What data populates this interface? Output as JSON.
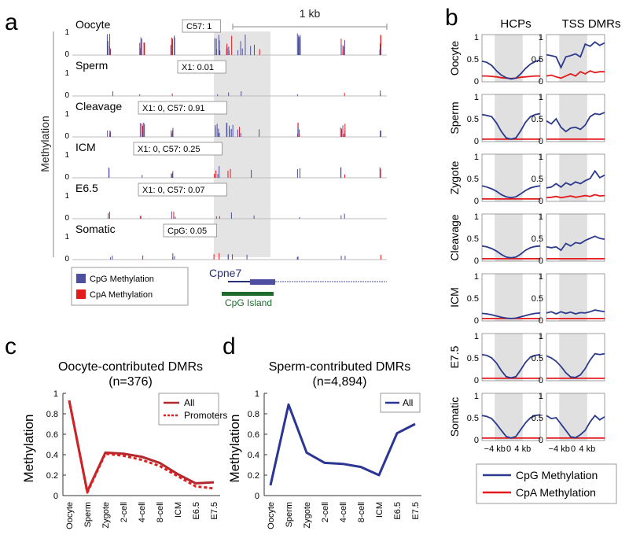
{
  "panels": {
    "a": "a",
    "b": "b",
    "c": "c",
    "d": "d"
  },
  "colors": {
    "cpg": "#2b3a8c",
    "cpa": "#e41a1c",
    "oocyte": "#b3282d",
    "sperm": "#2b3593",
    "island": "#1f6b2e",
    "shade": "#e0e0e0"
  },
  "chart_data": [
    {
      "type": "genome-track",
      "panel": "a",
      "ylabel": "Methylation",
      "scale_bar": "1 kb",
      "tracks": [
        {
          "name": "Oocyte",
          "box": "C57: 1"
        },
        {
          "name": "Sperm",
          "box": "X1: 0.01"
        },
        {
          "name": "Cleavage",
          "box": "X1: 0, C57: 0.91"
        },
        {
          "name": "ICM",
          "box": "X1: 0, C57: 0.25"
        },
        {
          "name": "E6.5",
          "box": "X1: 0, C57: 0.07"
        },
        {
          "name": "Somatic",
          "box": "CpG: 0.05"
        }
      ],
      "y_ticks": [
        "1",
        "0"
      ],
      "gene": "Cpne7",
      "cpg_island_label": "CpG Island",
      "legend": [
        "CpG Methylation",
        "CpA Methylation"
      ]
    },
    {
      "type": "line",
      "panel": "b",
      "columns": [
        "HCPs",
        "TSS DMRs"
      ],
      "rows": [
        "Oocyte",
        "Sperm",
        "Zygote",
        "Cleavage",
        "ICM",
        "E7.5",
        "Somatic"
      ],
      "x_ticks": [
        "−4 kb",
        "0",
        "4 kb"
      ],
      "y_ticks": [
        "1",
        "0.5",
        "0"
      ],
      "ylim": [
        0,
        1
      ],
      "legend": [
        "CpG Methylation",
        "CpA Methylation"
      ],
      "hcp_cpg": [
        [
          0.45,
          0.42,
          0.35,
          0.22,
          0.12,
          0.06,
          0.03,
          0.05,
          0.15,
          0.28,
          0.38,
          0.44,
          0.48
        ],
        [
          0.6,
          0.58,
          0.55,
          0.4,
          0.2,
          0.05,
          0.02,
          0.05,
          0.22,
          0.42,
          0.55,
          0.6,
          0.62
        ],
        [
          0.33,
          0.3,
          0.26,
          0.2,
          0.12,
          0.07,
          0.05,
          0.07,
          0.14,
          0.22,
          0.28,
          0.31,
          0.33
        ],
        [
          0.32,
          0.3,
          0.26,
          0.2,
          0.12,
          0.06,
          0.04,
          0.06,
          0.13,
          0.22,
          0.28,
          0.31,
          0.32
        ],
        [
          0.14,
          0.13,
          0.11,
          0.08,
          0.05,
          0.03,
          0.02,
          0.03,
          0.06,
          0.09,
          0.12,
          0.14,
          0.15
        ],
        [
          0.58,
          0.56,
          0.5,
          0.38,
          0.2,
          0.06,
          0.03,
          0.06,
          0.22,
          0.4,
          0.52,
          0.56,
          0.58
        ],
        [
          0.55,
          0.53,
          0.48,
          0.35,
          0.2,
          0.06,
          0.02,
          0.06,
          0.22,
          0.38,
          0.5,
          0.55,
          0.57
        ]
      ],
      "hcp_cpa": [
        [
          0.1,
          0.1,
          0.09,
          0.08,
          0.06,
          0.05,
          0.04,
          0.05,
          0.07,
          0.08,
          0.09,
          0.1,
          0.1
        ],
        [
          0.02,
          0.02,
          0.02,
          0.02,
          0.02,
          0.02,
          0.02,
          0.02,
          0.02,
          0.02,
          0.02,
          0.02,
          0.02
        ],
        [
          0.02,
          0.02,
          0.02,
          0.02,
          0.02,
          0.02,
          0.02,
          0.02,
          0.02,
          0.02,
          0.02,
          0.02,
          0.02
        ],
        [
          0.02,
          0.02,
          0.02,
          0.02,
          0.02,
          0.02,
          0.02,
          0.02,
          0.02,
          0.02,
          0.02,
          0.02,
          0.02
        ],
        [
          0.02,
          0.02,
          0.02,
          0.02,
          0.02,
          0.02,
          0.02,
          0.02,
          0.02,
          0.02,
          0.02,
          0.02,
          0.02
        ],
        [
          0.02,
          0.02,
          0.02,
          0.02,
          0.02,
          0.02,
          0.02,
          0.02,
          0.02,
          0.02,
          0.02,
          0.02,
          0.02
        ],
        [
          0.02,
          0.02,
          0.02,
          0.02,
          0.02,
          0.02,
          0.02,
          0.02,
          0.02,
          0.02,
          0.02,
          0.02,
          0.02
        ]
      ],
      "tss_cpg": [
        [
          0.6,
          0.58,
          0.55,
          0.3,
          0.55,
          0.58,
          0.62,
          0.55,
          0.85,
          0.8,
          0.9,
          0.82,
          0.88
        ],
        [
          0.45,
          0.38,
          0.5,
          0.3,
          0.2,
          0.28,
          0.3,
          0.25,
          0.35,
          0.55,
          0.62,
          0.6,
          0.65
        ],
        [
          0.28,
          0.3,
          0.38,
          0.3,
          0.4,
          0.35,
          0.42,
          0.38,
          0.45,
          0.5,
          0.68,
          0.52,
          0.58
        ],
        [
          0.3,
          0.28,
          0.3,
          0.22,
          0.38,
          0.32,
          0.4,
          0.38,
          0.45,
          0.5,
          0.55,
          0.5,
          0.48
        ],
        [
          0.15,
          0.18,
          0.13,
          0.18,
          0.14,
          0.17,
          0.13,
          0.16,
          0.15,
          0.18,
          0.22,
          0.2,
          0.18
        ],
        [
          0.55,
          0.5,
          0.42,
          0.3,
          0.15,
          0.05,
          0.04,
          0.1,
          0.25,
          0.45,
          0.6,
          0.58,
          0.6
        ],
        [
          0.55,
          0.48,
          0.5,
          0.35,
          0.2,
          0.05,
          0.03,
          0.1,
          0.2,
          0.4,
          0.55,
          0.45,
          0.52
        ]
      ],
      "tss_cpa": [
        [
          0.1,
          0.12,
          0.08,
          0.05,
          0.1,
          0.15,
          0.1,
          0.2,
          0.15,
          0.22,
          0.18,
          0.2,
          0.2
        ],
        [
          0.02,
          0.02,
          0.02,
          0.02,
          0.02,
          0.02,
          0.02,
          0.02,
          0.02,
          0.02,
          0.02,
          0.02,
          0.02
        ],
        [
          0.05,
          0.06,
          0.08,
          0.05,
          0.07,
          0.09,
          0.06,
          0.08,
          0.1,
          0.08,
          0.12,
          0.09,
          0.1
        ],
        [
          0.02,
          0.02,
          0.02,
          0.02,
          0.02,
          0.02,
          0.02,
          0.02,
          0.02,
          0.02,
          0.02,
          0.02,
          0.02
        ],
        [
          0.02,
          0.02,
          0.02,
          0.02,
          0.02,
          0.02,
          0.02,
          0.02,
          0.02,
          0.02,
          0.02,
          0.02,
          0.02
        ],
        [
          0.02,
          0.02,
          0.02,
          0.02,
          0.02,
          0.02,
          0.02,
          0.02,
          0.02,
          0.02,
          0.02,
          0.02,
          0.02
        ],
        [
          0.02,
          0.02,
          0.02,
          0.02,
          0.02,
          0.02,
          0.02,
          0.02,
          0.02,
          0.02,
          0.02,
          0.02,
          0.02
        ]
      ]
    },
    {
      "type": "line",
      "panel": "c",
      "title": "Oocyte-contributed DMRs",
      "subtitle": "(n=376)",
      "ylabel": "Methylation",
      "ylim": [
        0,
        1
      ],
      "y_ticks": [
        "0",
        "0.2",
        "0.4",
        "0.6",
        "0.8",
        "1"
      ],
      "categories": [
        "Oocyte",
        "Sperm",
        "Zygote",
        "2-cell",
        "4-cell",
        "8-cell",
        "ICM",
        "E6.5",
        "E7.5"
      ],
      "series": [
        {
          "name": "All",
          "values": [
            0.93,
            0.04,
            0.42,
            0.41,
            0.38,
            0.32,
            0.21,
            0.12,
            0.13
          ]
        },
        {
          "name": "Promoters",
          "values": [
            0.93,
            0.03,
            0.41,
            0.39,
            0.35,
            0.29,
            0.19,
            0.09,
            0.07
          ]
        }
      ]
    },
    {
      "type": "line",
      "panel": "d",
      "title": "Sperm-contributed DMRs",
      "subtitle": "(n=4,894)",
      "ylabel": "Methylation",
      "ylim": [
        0,
        1
      ],
      "y_ticks": [
        "0",
        "0.2",
        "0.4",
        "0.6",
        "0.8",
        "1"
      ],
      "categories": [
        "Oocyte",
        "Sperm",
        "Zygote",
        "2-cell",
        "4-cell",
        "8-cell",
        "ICM",
        "E6.5",
        "E7.5"
      ],
      "series": [
        {
          "name": "All",
          "values": [
            0.1,
            0.89,
            0.42,
            0.32,
            0.31,
            0.28,
            0.2,
            0.61,
            0.7
          ]
        }
      ]
    }
  ]
}
